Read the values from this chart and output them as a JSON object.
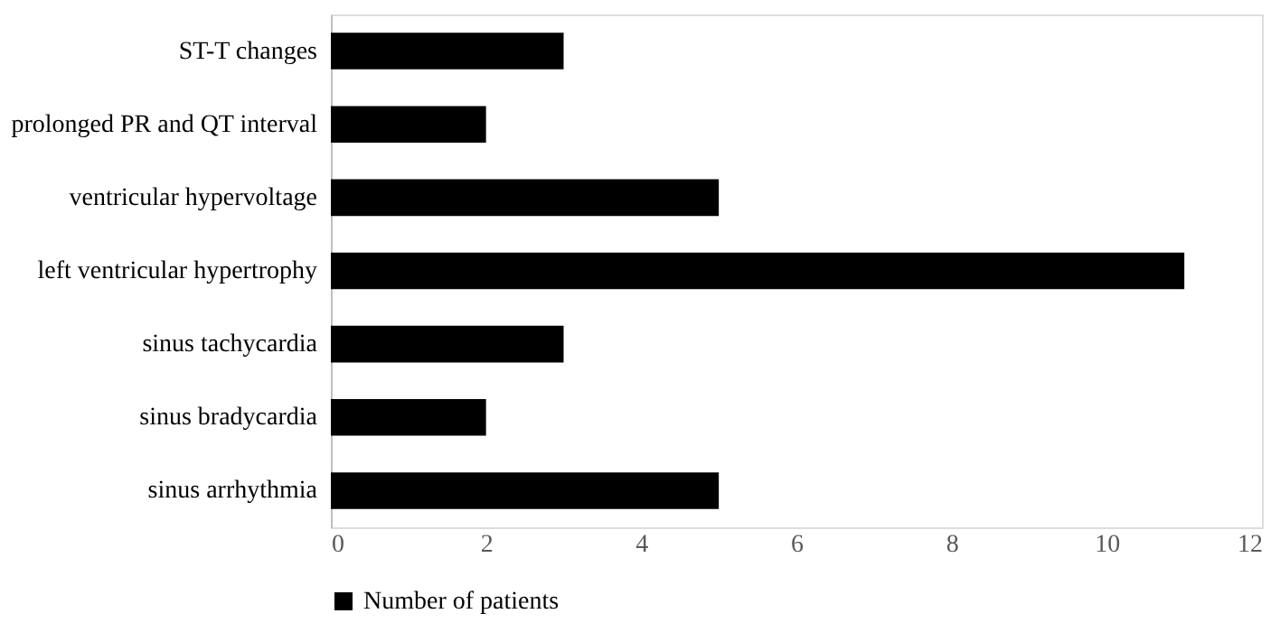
{
  "chart_data": {
    "type": "bar",
    "orientation": "horizontal",
    "categories": [
      "ST-T changes",
      "prolonged PR and QT interval",
      "ventricular hypervoltage",
      "left ventricular hypertrophy",
      "sinus tachycardia",
      "sinus bradycardia",
      "sinus arrhythmia"
    ],
    "series": [
      {
        "name": "Number of patients",
        "color": "#000000",
        "values": [
          3,
          2,
          5,
          11,
          3,
          2,
          5
        ]
      }
    ],
    "xlim": [
      0,
      12
    ],
    "xticks": [
      0,
      2,
      4,
      6,
      8,
      10,
      12
    ],
    "grid": false,
    "legend": "bottom"
  }
}
